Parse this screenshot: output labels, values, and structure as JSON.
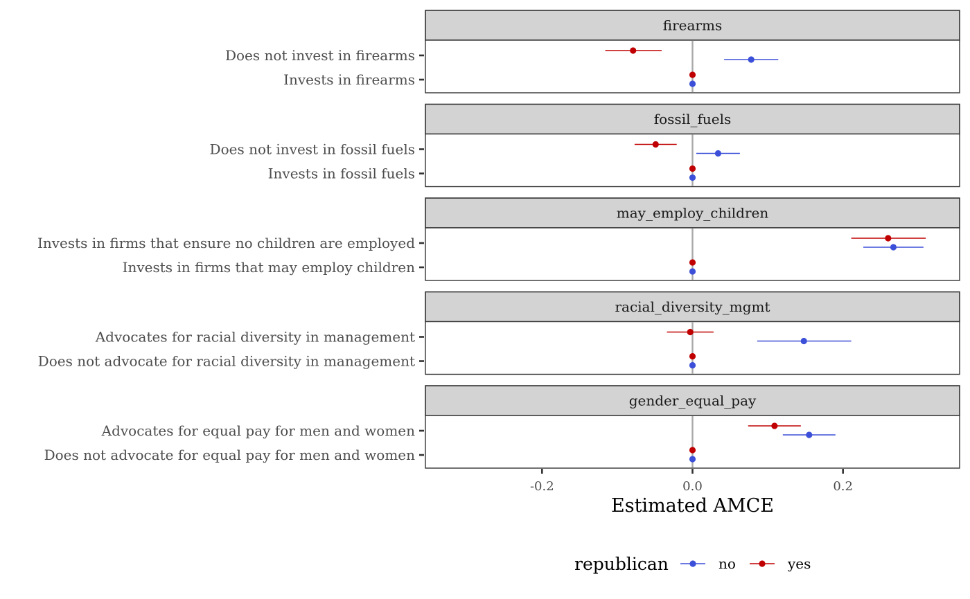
{
  "chart_data": {
    "type": "scatter",
    "subtype": "coefficient plot (point estimates with horizontal confidence intervals), faceted",
    "xlabel": "Estimated AMCE",
    "xlim": [
      -0.355,
      0.355
    ],
    "xticks": [
      -0.2,
      0.0,
      0.2
    ],
    "xtick_labels": [
      "-0.2",
      "0.0",
      "0.2"
    ],
    "reference_line": 0,
    "legend": {
      "title": "republican",
      "position": "bottom",
      "entries": [
        {
          "label": "no",
          "color": "#3b4fd8"
        },
        {
          "label": "yes",
          "color": "#c00000"
        }
      ]
    },
    "series_colors": {
      "no": "#3b4fd8",
      "yes": "#c00000"
    },
    "facets": [
      {
        "title": "firearms",
        "levels": [
          {
            "label": "Does not invest in firearms",
            "yes": {
              "estimate": -0.079,
              "lower": -0.116,
              "upper": -0.041
            },
            "no": {
              "estimate": 0.078,
              "lower": 0.042,
              "upper": 0.114
            }
          },
          {
            "label": "Invests in firearms",
            "yes": {
              "estimate": 0.0,
              "lower": 0.0,
              "upper": 0.0
            },
            "no": {
              "estimate": 0.0,
              "lower": 0.0,
              "upper": 0.0
            }
          }
        ]
      },
      {
        "title": "fossil_fuels",
        "levels": [
          {
            "label": "Does not invest in fossil fuels",
            "yes": {
              "estimate": -0.049,
              "lower": -0.077,
              "upper": -0.021
            },
            "no": {
              "estimate": 0.034,
              "lower": 0.005,
              "upper": 0.063
            }
          },
          {
            "label": "Invests in fossil fuels",
            "yes": {
              "estimate": 0.0,
              "lower": 0.0,
              "upper": 0.0
            },
            "no": {
              "estimate": 0.0,
              "lower": 0.0,
              "upper": 0.0
            }
          }
        ]
      },
      {
        "title": "may_employ_children",
        "levels": [
          {
            "label": "Invests in firms that ensure no children are employed",
            "yes": {
              "estimate": 0.26,
              "lower": 0.211,
              "upper": 0.31
            },
            "no": {
              "estimate": 0.267,
              "lower": 0.227,
              "upper": 0.307
            }
          },
          {
            "label": "Invests in firms that may employ children",
            "yes": {
              "estimate": 0.0,
              "lower": 0.0,
              "upper": 0.0
            },
            "no": {
              "estimate": 0.0,
              "lower": 0.0,
              "upper": 0.0
            }
          }
        ]
      },
      {
        "title": "racial_diversity_mgmt",
        "levels": [
          {
            "label": "Advocates for racial diversity in management",
            "yes": {
              "estimate": -0.003,
              "lower": -0.034,
              "upper": 0.028
            },
            "no": {
              "estimate": 0.148,
              "lower": 0.086,
              "upper": 0.211
            }
          },
          {
            "label": "Does not advocate for racial diversity in management",
            "yes": {
              "estimate": 0.0,
              "lower": 0.0,
              "upper": 0.0
            },
            "no": {
              "estimate": 0.0,
              "lower": 0.0,
              "upper": 0.0
            }
          }
        ]
      },
      {
        "title": "gender_equal_pay",
        "levels": [
          {
            "label": "Advocates for equal pay for men and women",
            "yes": {
              "estimate": 0.109,
              "lower": 0.074,
              "upper": 0.144
            },
            "no": {
              "estimate": 0.155,
              "lower": 0.12,
              "upper": 0.19
            }
          },
          {
            "label": "Does not advocate for equal pay for men and women",
            "yes": {
              "estimate": 0.0,
              "lower": 0.0,
              "upper": 0.0
            },
            "no": {
              "estimate": 0.0,
              "lower": 0.0,
              "upper": 0.0
            }
          }
        ]
      }
    ]
  }
}
